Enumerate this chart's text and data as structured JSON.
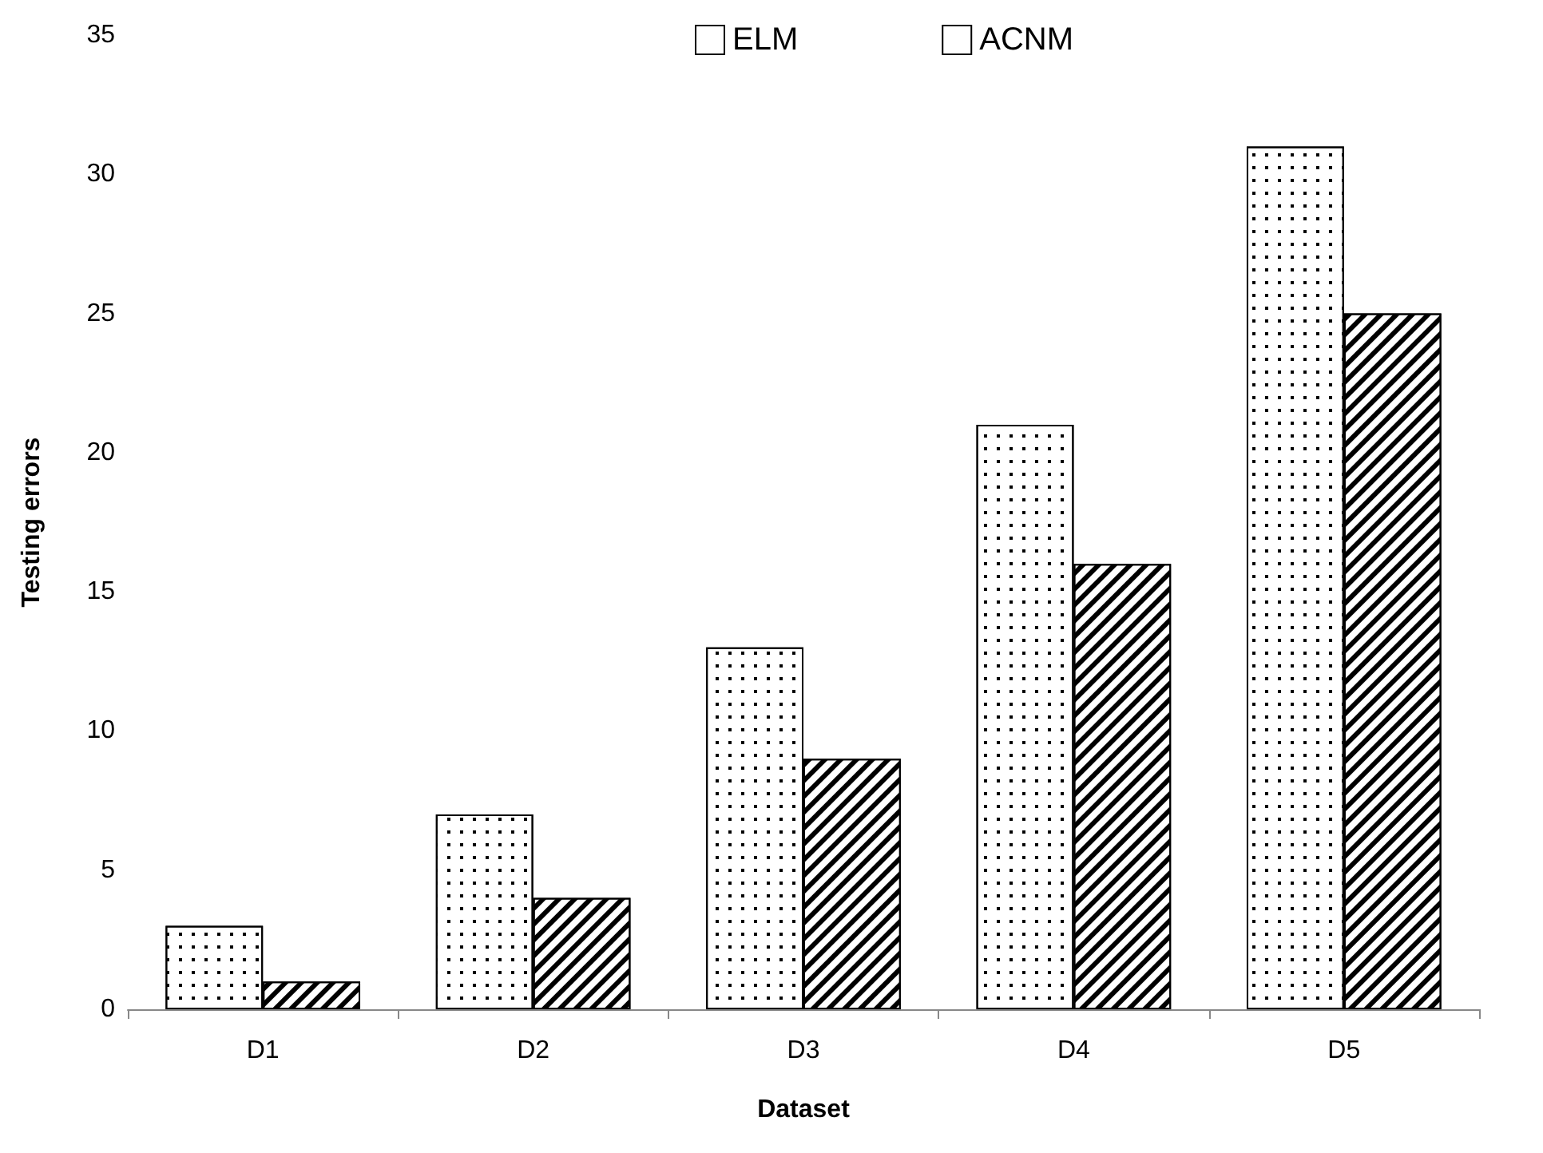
{
  "chart_data": {
    "type": "bar",
    "xlabel": "Dataset",
    "ylabel": "Testing errors",
    "categories": [
      "D1",
      "D2",
      "D3",
      "D4",
      "D5"
    ],
    "series": [
      {
        "name": "ELM",
        "color": "#ffffff",
        "values": [
          3,
          7,
          13,
          21,
          31
        ]
      },
      {
        "name": "ACNM",
        "color": "#ffffff",
        "values": [
          1,
          4,
          9,
          16,
          25
        ]
      }
    ],
    "ylim": [
      0,
      35
    ],
    "yticks": [
      0,
      5,
      10,
      15,
      20,
      25,
      30,
      35
    ],
    "grid": false,
    "legend": "top right"
  }
}
